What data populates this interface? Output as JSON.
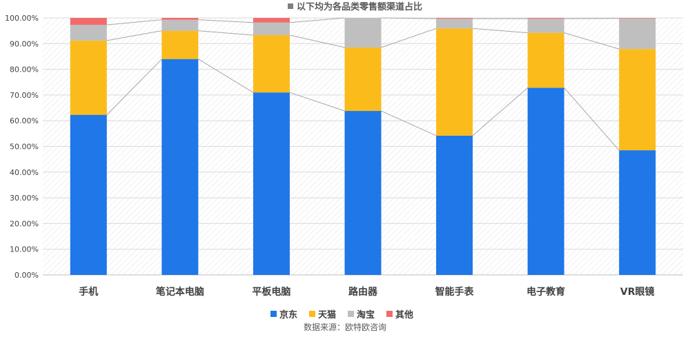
{
  "chart_data": {
    "type": "bar",
    "stacked": true,
    "title": "以下均为各品类零售额渠道占比",
    "source": "数据来源：欧特欧咨询",
    "categories": [
      "手机",
      "笔记本电脑",
      "平板电脑",
      "路由器",
      "智能手表",
      "电子教育",
      "VR眼镜"
    ],
    "ylim": [
      0,
      100
    ],
    "yticks": [
      "0.00%",
      "10.00%",
      "20.00%",
      "30.00%",
      "40.00%",
      "50.00%",
      "60.00%",
      "70.00%",
      "80.00%",
      "90.00%",
      "100.00%"
    ],
    "legend_position": "bottom",
    "series": [
      {
        "name": "京东",
        "color": "#1f77e8",
        "values": [
          62.3,
          84.0,
          71.0,
          63.8,
          54.2,
          72.8,
          48.5
        ]
      },
      {
        "name": "天猫",
        "color": "#fbbb1b",
        "values": [
          28.9,
          11.0,
          22.3,
          24.7,
          41.7,
          21.4,
          39.4
        ]
      },
      {
        "name": "淘宝",
        "color": "#bfbfbf",
        "values": [
          6.1,
          4.3,
          4.9,
          11.5,
          3.8,
          5.5,
          11.9
        ]
      },
      {
        "name": "其他",
        "color": "#f26b6b",
        "values": [
          2.7,
          0.7,
          1.8,
          0.0,
          0.3,
          0.3,
          0.2
        ]
      }
    ]
  }
}
